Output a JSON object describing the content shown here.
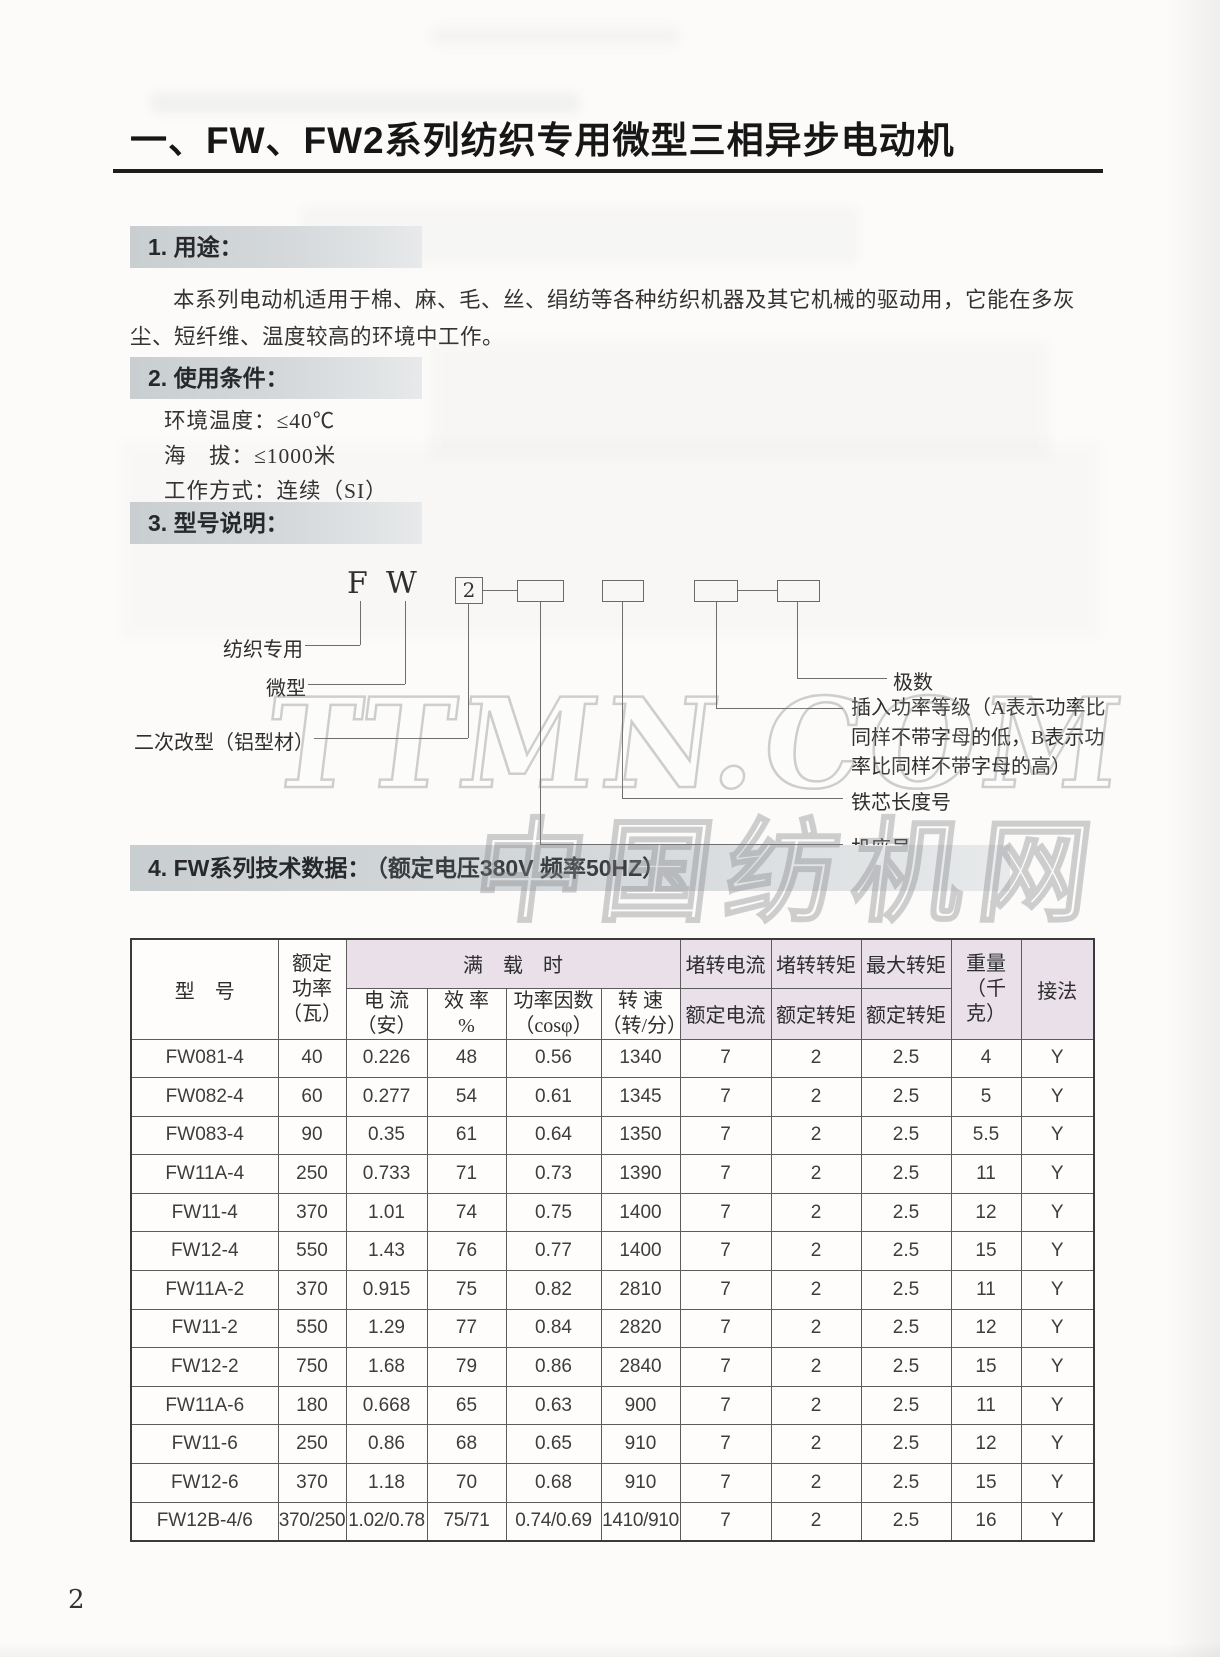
{
  "page_number": "2",
  "title": "一、FW、FW2系列纺织专用微型三相异步电动机",
  "watermark": {
    "line1": "TTMN.COM",
    "line2": "中国纺机网"
  },
  "colors": {
    "header_pink": "#e9e0ea",
    "section_bar_gray": "#cfd3d6"
  },
  "section1": {
    "heading": "1. 用途：",
    "body": "本系列电动机适用于棉、麻、毛、丝、绢纺等各种纺织机器及其它机械的驱动用，它能在多灰尘、短纤维、温度较高的环境中工作。"
  },
  "section2": {
    "heading": "2. 使用条件：",
    "items": [
      "环境温度：≤40℃",
      "海　拔：≤1000米",
      "工作方式：连续（SI）"
    ]
  },
  "section3": {
    "heading": "3. 型号说明：",
    "code": {
      "f": "F",
      "w": "W",
      "variant": "2"
    },
    "labels": {
      "textile": "纺织专用",
      "micro": "微型",
      "second_mod": "二次改型（铝型材）",
      "power_grade": "插入功率等级（A表示功率比同样不带字母的低，B表示功率比同样不带字母的高）",
      "core_length": "铁芯长度号",
      "frame": "机座号",
      "poles": "极数"
    }
  },
  "section4": {
    "heading": "4. FW系列技术数据：",
    "heading_note": "（额定电压380V 频率50HZ）"
  },
  "table": {
    "header": {
      "model": "型　号",
      "rated_power": [
        "额定",
        "功率",
        "（瓦）"
      ],
      "full_load": "满　载　时",
      "current": [
        "电 流",
        "（安）"
      ],
      "efficiency": [
        "效 率",
        "%"
      ],
      "power_factor": [
        "功率因数",
        "（cosφ）"
      ],
      "speed": [
        "转 速",
        "（转/分）"
      ],
      "locked_rotor_current": [
        "堵转电流",
        "额定电流"
      ],
      "locked_rotor_torque": [
        "堵转转矩",
        "额定转矩"
      ],
      "max_torque": [
        "最大转矩",
        "额定转矩"
      ],
      "weight": [
        "重量",
        "（千克）"
      ],
      "connection": "接法"
    },
    "rows": [
      [
        "FW081-4",
        "40",
        "0.226",
        "48",
        "0.56",
        "1340",
        "7",
        "2",
        "2.5",
        "4",
        "Y"
      ],
      [
        "FW082-4",
        "60",
        "0.277",
        "54",
        "0.61",
        "1345",
        "7",
        "2",
        "2.5",
        "5",
        "Y"
      ],
      [
        "FW083-4",
        "90",
        "0.35",
        "61",
        "0.64",
        "1350",
        "7",
        "2",
        "2.5",
        "5.5",
        "Y"
      ],
      [
        "FW11A-4",
        "250",
        "0.733",
        "71",
        "0.73",
        "1390",
        "7",
        "2",
        "2.5",
        "11",
        "Y"
      ],
      [
        "FW11-4",
        "370",
        "1.01",
        "74",
        "0.75",
        "1400",
        "7",
        "2",
        "2.5",
        "12",
        "Y"
      ],
      [
        "FW12-4",
        "550",
        "1.43",
        "76",
        "0.77",
        "1400",
        "7",
        "2",
        "2.5",
        "15",
        "Y"
      ],
      [
        "FW11A-2",
        "370",
        "0.915",
        "75",
        "0.82",
        "2810",
        "7",
        "2",
        "2.5",
        "11",
        "Y"
      ],
      [
        "FW11-2",
        "550",
        "1.29",
        "77",
        "0.84",
        "2820",
        "7",
        "2",
        "2.5",
        "12",
        "Y"
      ],
      [
        "FW12-2",
        "750",
        "1.68",
        "79",
        "0.86",
        "2840",
        "7",
        "2",
        "2.5",
        "15",
        "Y"
      ],
      [
        "FW11A-6",
        "180",
        "0.668",
        "65",
        "0.63",
        "900",
        "7",
        "2",
        "2.5",
        "11",
        "Y"
      ],
      [
        "FW11-6",
        "250",
        "0.86",
        "68",
        "0.65",
        "910",
        "7",
        "2",
        "2.5",
        "12",
        "Y"
      ],
      [
        "FW12-6",
        "370",
        "1.18",
        "70",
        "0.68",
        "910",
        "7",
        "2",
        "2.5",
        "15",
        "Y"
      ],
      [
        "FW12B-4/6",
        "370/250",
        "1.02/0.78",
        "75/71",
        "0.74/0.69",
        "1410/910",
        "7",
        "2",
        "2.5",
        "16",
        "Y"
      ]
    ]
  }
}
